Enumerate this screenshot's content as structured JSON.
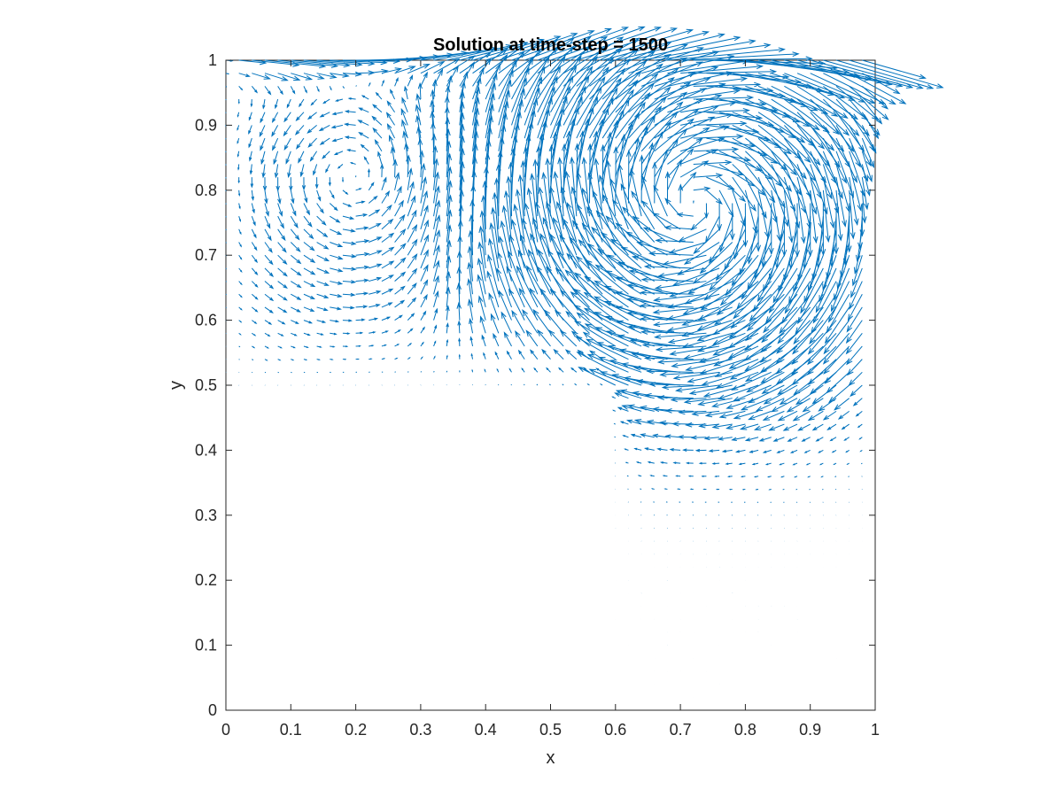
{
  "chart_data": {
    "type": "quiver",
    "title": "Solution at time-step = 1500",
    "xlabel": "x",
    "ylabel": "y",
    "xlim": [
      0,
      1
    ],
    "ylim": [
      0,
      1
    ],
    "xticks": [
      "0",
      "0.1",
      "0.2",
      "0.3",
      "0.4",
      "0.5",
      "0.6",
      "0.7",
      "0.8",
      "0.9",
      "1"
    ],
    "yticks": [
      "0",
      "0.1",
      "0.2",
      "0.3",
      "0.4",
      "0.5",
      "0.6",
      "0.7",
      "0.8",
      "0.9",
      "1"
    ],
    "domain": "L-shaped: [0,1]x[0.5,1] union [0.6,1]x[0,0.5]",
    "vortex_center": [
      0.72,
      0.78
    ],
    "grid": false,
    "colors": {
      "arrows": "#0072BD",
      "axes": "#262626"
    }
  }
}
